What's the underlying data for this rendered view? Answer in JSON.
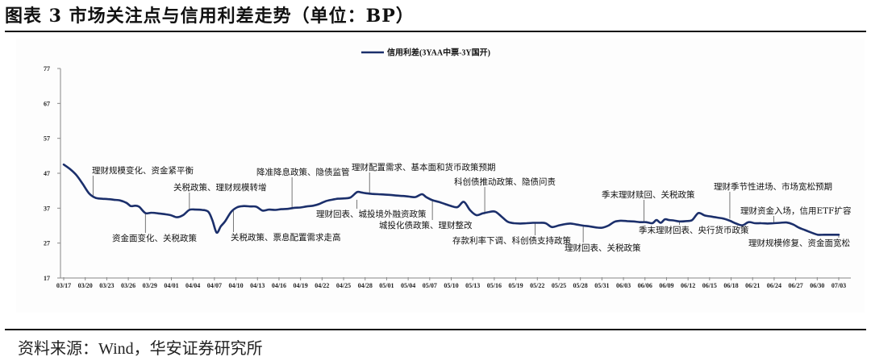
{
  "header": {
    "title": "图表 3 市场关注点与信用利差走势（单位：BP）"
  },
  "footer": {
    "source": "资料来源：Wind，华安证券研究所"
  },
  "colors": {
    "line": "#1b2f6b",
    "axis": "#888888",
    "leader": "#555555"
  },
  "chart_data": {
    "type": "line",
    "title": "市场关注点与信用利差走势（单位：BP）",
    "xlabel": "",
    "ylabel": "BP",
    "ylim": [
      17,
      77
    ],
    "yticks": [
      17,
      27,
      37,
      47,
      57,
      67,
      77
    ],
    "grid": false,
    "legend_position": "top-center",
    "categories": [
      "03/17",
      "03/20",
      "03/23",
      "03/26",
      "03/29",
      "04/01",
      "04/04",
      "04/07",
      "04/10",
      "04/13",
      "04/16",
      "04/19",
      "04/22",
      "04/25",
      "04/28",
      "05/01",
      "05/04",
      "05/07",
      "05/10",
      "05/13",
      "05/16",
      "05/19",
      "05/22",
      "05/25",
      "05/28",
      "05/31",
      "06/03",
      "06/06",
      "06/09",
      "06/12",
      "06/15",
      "06/18",
      "06/21",
      "06/24",
      "06/27",
      "06/30",
      "07/03"
    ],
    "series": [
      {
        "name": "信用利差(3YAA中票-3Y国开)",
        "x": [
          0,
          0.3,
          0.6,
          0.9,
          1.2,
          1.5,
          1.8,
          2.1,
          2.4,
          2.7,
          3.0,
          3.2,
          3.4,
          3.6,
          3.9,
          4.2,
          4.5,
          4.8,
          5.1,
          5.4,
          5.7,
          6.0,
          6.3,
          6.6,
          6.9,
          7.1,
          7.3,
          7.5,
          7.7,
          8.0,
          8.3,
          8.6,
          8.9,
          9.2,
          9.5,
          9.8,
          10.1,
          10.4,
          10.7,
          11.0,
          11.3,
          11.6,
          11.9,
          12.2,
          12.5,
          12.8,
          13.1,
          13.4,
          13.7,
          14.0,
          14.2,
          14.4,
          14.7,
          15.0,
          15.3,
          15.6,
          15.9,
          16.2,
          16.5,
          16.8,
          17.1,
          17.3,
          17.6,
          17.9,
          18.2,
          18.5,
          18.8,
          19.1,
          19.4,
          19.7,
          20.0,
          20.3,
          20.6,
          20.9,
          21.2,
          21.5,
          21.8,
          22.1,
          22.4,
          22.7,
          23.0,
          23.3,
          23.6,
          23.9,
          24.2,
          24.5,
          24.8,
          25.1,
          25.4,
          25.7,
          26.0,
          26.3,
          26.6,
          26.9,
          27.2,
          27.5,
          27.8,
          28.1,
          28.3,
          28.5,
          28.7,
          28.9,
          29.1,
          29.4,
          29.7,
          30.0,
          30.3,
          30.6,
          30.9,
          31.2,
          31.5,
          31.8,
          32.1,
          32.4,
          32.7,
          33.0,
          33.3,
          33.6,
          33.9,
          34.2,
          34.5,
          34.8,
          35.1,
          35.4,
          35.7,
          36.0,
          36.3,
          36.6,
          36.9,
          37.0
        ],
        "values": [
          49.5,
          48.2,
          46.5,
          44.0,
          41.3,
          40.0,
          39.7,
          39.6,
          39.4,
          39.2,
          38.5,
          37.6,
          37.7,
          37.4,
          35.6,
          35.7,
          35.5,
          35.3,
          35.0,
          34.4,
          35.0,
          36.5,
          36.6,
          36.5,
          36.0,
          33.5,
          30.0,
          31.8,
          33.2,
          36.0,
          37.3,
          37.6,
          37.5,
          37.4,
          36.3,
          36.6,
          36.5,
          36.7,
          36.8,
          37.1,
          37.2,
          37.5,
          37.7,
          38.2,
          39.0,
          39.4,
          39.7,
          39.8,
          40.1,
          41.6,
          41.5,
          41.3,
          41.1,
          41.0,
          40.9,
          40.8,
          40.6,
          40.5,
          40.3,
          40.2,
          41.0,
          40.2,
          39.3,
          38.8,
          38.2,
          37.6,
          37.3,
          38.8,
          36.4,
          35.0,
          35.5,
          35.9,
          36.0,
          34.6,
          33.1,
          32.7,
          32.6,
          32.7,
          32.8,
          32.8,
          32.7,
          31.6,
          32.0,
          32.4,
          32.6,
          32.3,
          32.0,
          31.8,
          31.5,
          31.4,
          32.0,
          33.1,
          33.4,
          33.3,
          33.2,
          33.0,
          33.0,
          32.7,
          33.6,
          32.8,
          33.8,
          33.6,
          33.5,
          33.2,
          33.3,
          33.6,
          35.6,
          34.9,
          34.6,
          34.3,
          34.0,
          33.4,
          32.6,
          32.1,
          33.0,
          32.7,
          32.7,
          32.6,
          32.7,
          32.8,
          32.9,
          32.4,
          31.4,
          30.7,
          30.0,
          29.4,
          29.4,
          29.4,
          29.4,
          29.4
        ]
      }
    ],
    "annotations": [
      {
        "text": "理财规模变化、资金紧平衡",
        "point": [
          1.4,
          40.3
        ],
        "label": [
          114,
          215
        ]
      },
      {
        "text": "资金面变化、关税政策",
        "point": [
          3.9,
          35.6
        ],
        "label": [
          139,
          299
        ]
      },
      {
        "text": "关税政策、理财规模转增",
        "point": [
          6.0,
          36.5
        ],
        "label": [
          215,
          236
        ]
      },
      {
        "text": "关税政策、票息配置需求走高",
        "point": [
          8.1,
          36.3
        ],
        "label": [
          286,
          298
        ]
      },
      {
        "text": "降准降息政策、隐债监管",
        "point": [
          10.9,
          36.7
        ],
        "label": [
          318,
          217
        ]
      },
      {
        "text": "理财配置需求、基本面和货币政策预期",
        "point": [
          14.6,
          41.2
        ],
        "label": [
          436,
          211
        ]
      },
      {
        "text": "理财回表、城投境外融资政策",
        "point": [
          14.0,
          39.4
        ],
        "label": [
          392,
          269
        ]
      },
      {
        "text": "城投化债政策、理财整改",
        "point": [
          17.6,
          39.3
        ],
        "label": [
          470,
          283
        ]
      },
      {
        "text": "科创债推动政策、隐债问责",
        "point": [
          20.1,
          35.3
        ],
        "label": [
          563,
          229
        ]
      },
      {
        "text": "存款利率下调、科创债支持政策",
        "point": [
          22.5,
          32.8
        ],
        "label": [
          561,
          302
        ]
      },
      {
        "text": "理财回表、关税政策",
        "point": [
          24.8,
          32.0
        ],
        "label": [
          700,
          311
        ]
      },
      {
        "text": "季末理财赎回、关税政策",
        "point": [
          27.7,
          33.1
        ],
        "label": [
          746,
          245
        ]
      },
      {
        "text": "季末理财回表、央行货币政策",
        "point": [
          29.4,
          33.3
        ],
        "label": [
          792,
          289
        ]
      },
      {
        "text": "理财季节性进场、市场宽松预期",
        "point": [
          31.8,
          34.0
        ],
        "label": [
          885,
          235
        ]
      },
      {
        "text": "理财资金入场，信用ETF扩容",
        "point": [
          33.9,
          32.6
        ],
        "label": [
          918,
          265
        ]
      },
      {
        "text": "理财规模修复、资金面宽松",
        "point": [
          37.0,
          29.4
        ],
        "label": [
          928,
          305
        ]
      }
    ]
  }
}
